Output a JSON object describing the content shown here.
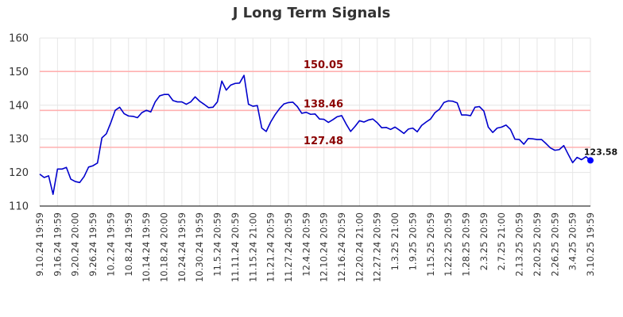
{
  "chart_data": {
    "type": "line",
    "title": "J Long Term Signals",
    "xlabel": "",
    "ylabel": "",
    "ylim": [
      110,
      160
    ],
    "yticks": [
      110,
      120,
      130,
      140,
      150,
      160
    ],
    "grid": true,
    "x_tick_labels": [
      "9.10.24 19:59",
      "9.16.24 19:59",
      "9.20.24 20:00",
      "9.26.24 19:59",
      "10.2.24 19:59",
      "10.8.24 19:59",
      "10.14.24 19:59",
      "10.18.24 20:00",
      "10.24.24 19:59",
      "10.30.24 19:59",
      "11.5.24 20:59",
      "11.11.24 20:59",
      "11.15.24 21:00",
      "11.21.24 20:59",
      "11.27.24 20:59",
      "12.4.24 20:59",
      "12.10.24 20:59",
      "12.16.24 20:59",
      "12.20.24 21:00",
      "12.27.24 20:59",
      "1.3.25 21:00",
      "1.9.25 20:59",
      "1.15.25 20:59",
      "1.22.25 20:59",
      "1.28.25 20:59",
      "2.3.25 20:59",
      "2.7.25 21:00",
      "2.13.25 20:59",
      "2.20.25 20:59",
      "2.26.25 20:59",
      "3.4.25 20:59",
      "3.10.25 19:59"
    ],
    "levels": [
      {
        "value": 150.05,
        "label": "150.05"
      },
      {
        "value": 138.46,
        "label": "138.46"
      },
      {
        "value": 127.48,
        "label": "127.48"
      }
    ],
    "series": [
      {
        "values": [
          119.5,
          118.5,
          119.0,
          113.5,
          121.0,
          121.0,
          121.5,
          118.0,
          117.3,
          117.0,
          118.8,
          121.6,
          122.0,
          122.8,
          130.3,
          131.5,
          134.8,
          138.5,
          139.4,
          137.5,
          136.8,
          136.7,
          136.3,
          137.8,
          138.5,
          138.0,
          141.0,
          142.8,
          143.2,
          143.2,
          141.4,
          141.0,
          141.0,
          140.3,
          141.0,
          142.5,
          141.2,
          140.3,
          139.3,
          139.4,
          141.0,
          147.2,
          144.5,
          146.0,
          146.5,
          146.6,
          148.9,
          140.3,
          139.7,
          139.9,
          133.2,
          132.2,
          135.0,
          137.2,
          139.0,
          140.4,
          140.8,
          140.9,
          139.6,
          137.6,
          137.9,
          137.3,
          137.4,
          135.9,
          135.8,
          134.9,
          135.7,
          136.6,
          136.9,
          134.4,
          132.2,
          133.7,
          135.4,
          135.0,
          135.6,
          135.9,
          134.8,
          133.3,
          133.4,
          132.8,
          133.5,
          132.6,
          131.6,
          132.9,
          133.2,
          132.1,
          134.0,
          135.0,
          135.9,
          137.8,
          138.8,
          140.8,
          141.3,
          141.2,
          140.7,
          137.1,
          137.1,
          136.9,
          139.4,
          139.6,
          138.3,
          133.5,
          131.9,
          133.2,
          133.5,
          134.1,
          132.8,
          129.9,
          129.8,
          128.4,
          130.1,
          130.0,
          129.8,
          129.8,
          128.6,
          127.3,
          126.6,
          126.8,
          128.0,
          125.4,
          122.9,
          124.5,
          123.8,
          124.7,
          123.58
        ]
      }
    ],
    "last_value_label": "123.58",
    "colors": {
      "line": "#0000cc",
      "marker": "#0000ff",
      "level_line": "#ffb0b0",
      "level_text": "#8b0000",
      "grid": "#e6e6e6",
      "axis": "#000000"
    }
  }
}
